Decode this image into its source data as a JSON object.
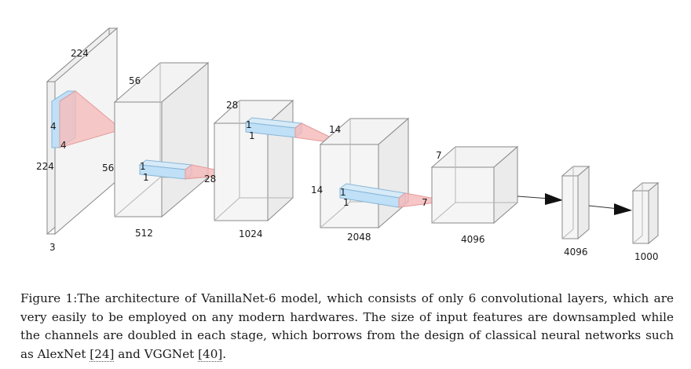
{
  "diagram": {
    "input": {
      "height": "224",
      "width": "224",
      "channels": "3",
      "kernel_h": "4",
      "kernel_w": "4"
    },
    "stage1": {
      "size": "56",
      "size_side": "56",
      "channels": "512",
      "kernel_a": "1",
      "kernel_b": "1",
      "pool": "28"
    },
    "stage2": {
      "size": "28",
      "channels": "1024",
      "kernel_a": "1",
      "kernel_b": "1",
      "pool": "14"
    },
    "stage3": {
      "size_side": "14",
      "channels": "2048",
      "kernel_a": "1",
      "kernel_b": "1",
      "pool": "7"
    },
    "stage4": {
      "size": "7",
      "channels": "4096"
    },
    "fc1": {
      "units": "4096"
    },
    "fc2": {
      "units": "1000"
    }
  },
  "caption": {
    "label": "Figure 1:",
    "text_1": "The architecture of VanillaNet-6 model, which consists of only 6 convolutional layers, which are very easily to be employed on any modern hardwares. The size of input features are downsampled while the channels are doubled in each stage, which borrows from the design of classical neural networks such as AlexNet ",
    "ref_1": "[24]",
    "text_2": " and VGGNet ",
    "ref_2": "[40]",
    "text_3": "."
  },
  "colors": {
    "kernel_blue": "#bfe0f7",
    "pyramid_red": "#f5b8b8",
    "block_fill": "#f2f2f2",
    "edge": "#888888"
  }
}
